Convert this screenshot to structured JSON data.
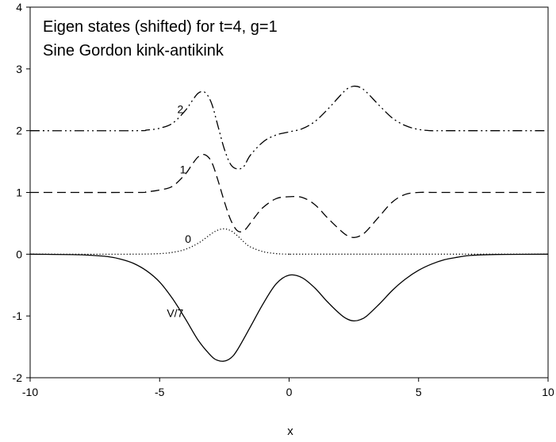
{
  "chart_data": {
    "type": "line",
    "title_lines": [
      "Eigen states (shifted) for t=4, g=1",
      "Sine Gordon kink-antikink"
    ],
    "xlabel": "x",
    "ylabel": "",
    "xlim": [
      -10,
      10
    ],
    "ylim": [
      -2,
      4
    ],
    "xticks": [
      "-10",
      "-5",
      "0",
      "5",
      "10"
    ],
    "yticks": [
      "-2",
      "-1",
      "0",
      "1",
      "2",
      "3",
      "4"
    ],
    "grid": false,
    "legend": "none",
    "series": [
      {
        "name": "V/7",
        "style": "solid",
        "label_at": [
          -4.4,
          -0.95
        ],
        "x": [
          -10,
          -8,
          -7,
          -6.5,
          -6,
          -5.5,
          -5,
          -4.5,
          -4,
          -3.5,
          -3,
          -2.75,
          -2.5,
          -2.25,
          -2,
          -1.5,
          -1,
          -0.5,
          0,
          0.5,
          1,
          1.5,
          2,
          2.25,
          2.5,
          2.75,
          3,
          3.5,
          4,
          4.5,
          5,
          5.5,
          6,
          6.5,
          7,
          8,
          10
        ],
        "y": [
          0,
          -0.01,
          -0.04,
          -0.08,
          -0.15,
          -0.27,
          -0.45,
          -0.72,
          -1.05,
          -1.4,
          -1.65,
          -1.72,
          -1.73,
          -1.68,
          -1.55,
          -1.18,
          -0.8,
          -0.48,
          -0.34,
          -0.38,
          -0.55,
          -0.78,
          -0.98,
          -1.05,
          -1.08,
          -1.06,
          -1.0,
          -0.8,
          -0.58,
          -0.4,
          -0.26,
          -0.16,
          -0.09,
          -0.05,
          -0.02,
          -0.005,
          0
        ]
      },
      {
        "name": "0",
        "style": "dotted",
        "label_at": [
          -3.9,
          0.25
        ],
        "x": [
          -10,
          -6,
          -5,
          -4.5,
          -4,
          -3.5,
          -3,
          -2.75,
          -2.5,
          -2.25,
          -2,
          -1.75,
          -1.5,
          -1,
          -0.5,
          0,
          1,
          10
        ],
        "y": [
          0,
          0,
          0.01,
          0.03,
          0.08,
          0.18,
          0.33,
          0.39,
          0.41,
          0.38,
          0.3,
          0.2,
          0.12,
          0.04,
          0.01,
          0,
          0,
          0
        ]
      },
      {
        "name": "1",
        "style": "dashed",
        "label_at": [
          -4.1,
          1.37
        ],
        "x": [
          -10,
          -6,
          -5.5,
          -5,
          -4.5,
          -4,
          -3.75,
          -3.5,
          -3.25,
          -3,
          -2.75,
          -2.5,
          -2.25,
          -2,
          -1.75,
          -1.5,
          -1.25,
          -1,
          -0.5,
          0,
          0.5,
          1,
          1.5,
          2,
          2.25,
          2.5,
          2.75,
          3,
          3.5,
          4,
          4.5,
          5,
          5.5,
          6,
          10
        ],
        "y": [
          1,
          1,
          1.01,
          1.04,
          1.1,
          1.3,
          1.45,
          1.58,
          1.61,
          1.5,
          1.2,
          0.85,
          0.55,
          0.38,
          0.38,
          0.5,
          0.64,
          0.76,
          0.9,
          0.93,
          0.92,
          0.8,
          0.58,
          0.38,
          0.3,
          0.27,
          0.3,
          0.38,
          0.62,
          0.85,
          0.97,
          1.0,
          1.0,
          1.0,
          1.0
        ]
      },
      {
        "name": "2",
        "style": "dashdotdot",
        "label_at": [
          -4.2,
          2.35
        ],
        "x": [
          -10,
          -6,
          -5.5,
          -5,
          -4.5,
          -4,
          -3.75,
          -3.5,
          -3.25,
          -3,
          -2.75,
          -2.5,
          -2.25,
          -2,
          -1.75,
          -1.5,
          -1,
          -0.5,
          0,
          0.5,
          1,
          1.5,
          2,
          2.25,
          2.5,
          2.75,
          3,
          3.5,
          4,
          4.5,
          5,
          5.5,
          6,
          10
        ],
        "y": [
          2,
          2,
          2.01,
          2.04,
          2.12,
          2.33,
          2.48,
          2.61,
          2.62,
          2.45,
          2.08,
          1.7,
          1.45,
          1.38,
          1.42,
          1.6,
          1.82,
          1.93,
          1.98,
          2.03,
          2.15,
          2.35,
          2.58,
          2.68,
          2.72,
          2.7,
          2.62,
          2.4,
          2.2,
          2.08,
          2.02,
          2.0,
          2.0,
          2.0
        ]
      }
    ]
  }
}
